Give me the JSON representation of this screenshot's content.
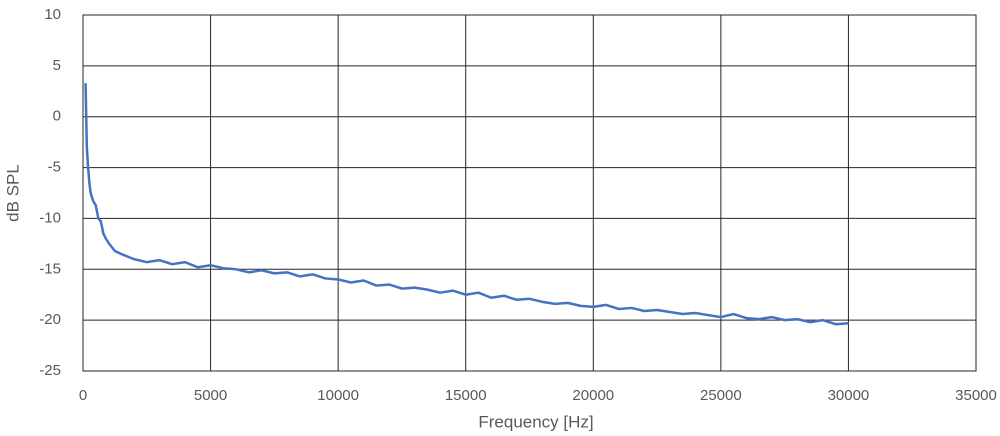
{
  "chart_data": {
    "type": "line",
    "x_label": "Frequency [Hz]",
    "y_label": "dB SPL",
    "x": [
      100,
      150,
      200,
      250,
      300,
      400,
      500,
      600,
      700,
      800,
      900,
      1000,
      1250,
      1500,
      2000,
      2500,
      3000,
      3500,
      4000,
      4500,
      5000,
      5500,
      6000,
      6500,
      7000,
      7500,
      8000,
      8500,
      9000,
      9500,
      10000,
      10500,
      11000,
      11500,
      12000,
      12500,
      13000,
      13500,
      14000,
      14500,
      15000,
      15500,
      16000,
      16500,
      17000,
      17500,
      18000,
      18500,
      19000,
      19500,
      20000,
      20500,
      21000,
      21500,
      22000,
      22500,
      23000,
      23500,
      24000,
      24500,
      25000,
      25500,
      26000,
      26500,
      27000,
      27500,
      28000,
      28500,
      29000,
      29500,
      30000
    ],
    "series": [
      {
        "color": "#4472c4",
        "values": [
          3.3,
          -3,
          -5,
          -6.5,
          -7.5,
          -8.3,
          -8.7,
          -10,
          -10.3,
          -11.5,
          -12,
          -12.4,
          -13.2,
          -13.5,
          -14.0,
          -14.3,
          -14.1,
          -14.5,
          -14.3,
          -14.8,
          -14.6,
          -14.9,
          -15.0,
          -15.3,
          -15.1,
          -15.4,
          -15.3,
          -15.7,
          -15.5,
          -15.9,
          -16.0,
          -16.3,
          -16.1,
          -16.6,
          -16.5,
          -16.9,
          -16.8,
          -17.0,
          -17.3,
          -17.1,
          -17.5,
          -17.3,
          -17.8,
          -17.6,
          -18.0,
          -17.9,
          -18.2,
          -18.4,
          -18.3,
          -18.6,
          -18.7,
          -18.5,
          -18.9,
          -18.8,
          -19.1,
          -19.0,
          -19.2,
          -19.4,
          -19.3,
          -19.5,
          -19.7,
          -19.4,
          -19.8,
          -19.9,
          -19.7,
          -20.0,
          -19.9,
          -20.2,
          -20.0,
          -20.4,
          -20.3
        ]
      }
    ],
    "xlim": [
      0,
      35000
    ],
    "xticks": [
      0,
      5000,
      10000,
      15000,
      20000,
      25000,
      30000,
      35000
    ],
    "ylim": [
      -25,
      10
    ],
    "yticks": [
      -25,
      -20,
      -15,
      -10,
      -5,
      0,
      5,
      10
    ],
    "grid": true
  }
}
